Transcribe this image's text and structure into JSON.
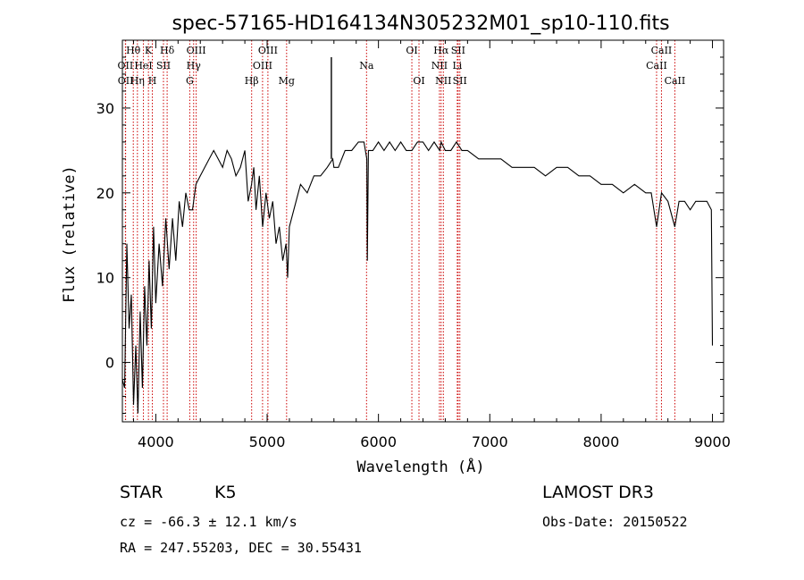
{
  "chart_data": {
    "type": "line",
    "title": "spec-57165-HD164134N305232M01_sp10-110.fits",
    "xlabel": "Wavelength (Å)",
    "ylabel": "Flux (relative)",
    "xlim": [
      3700,
      9100
    ],
    "ylim": [
      -7,
      38
    ],
    "xticks": [
      4000,
      5000,
      6000,
      7000,
      8000,
      9000
    ],
    "yticks": [
      0,
      10,
      20,
      30
    ],
    "series": [
      {
        "name": "spectrum",
        "x": [
          3700,
          3720,
          3740,
          3760,
          3780,
          3800,
          3820,
          3840,
          3860,
          3880,
          3900,
          3920,
          3940,
          3960,
          3980,
          4000,
          4030,
          4060,
          4090,
          4120,
          4150,
          4180,
          4210,
          4240,
          4270,
          4300,
          4330,
          4360,
          4400,
          4440,
          4480,
          4520,
          4560,
          4600,
          4640,
          4680,
          4720,
          4760,
          4800,
          4830,
          4860,
          4880,
          4900,
          4930,
          4960,
          4990,
          5020,
          5050,
          5080,
          5110,
          5140,
          5170,
          5184,
          5200,
          5240,
          5300,
          5360,
          5420,
          5480,
          5540,
          5590,
          5600,
          5640,
          5700,
          5760,
          5820,
          5870,
          5895,
          5900,
          5910,
          5950,
          6000,
          6050,
          6100,
          6150,
          6200,
          6250,
          6300,
          6350,
          6400,
          6450,
          6500,
          6550,
          6563,
          6600,
          6650,
          6700,
          6750,
          6800,
          6900,
          7000,
          7100,
          7200,
          7300,
          7400,
          7500,
          7600,
          7700,
          7800,
          7900,
          8000,
          8100,
          8200,
          8300,
          8400,
          8450,
          8498,
          8542,
          8600,
          8662,
          8700,
          8750,
          8800,
          8850,
          8900,
          8950,
          8990,
          9000
        ],
        "y": [
          -2,
          -3,
          14,
          4,
          8,
          -5,
          2,
          -6,
          6,
          -3,
          9,
          2,
          12,
          4,
          16,
          7,
          14,
          9,
          17,
          11,
          17,
          12,
          19,
          16,
          20,
          18,
          18,
          21,
          22,
          23,
          24,
          25,
          24,
          23,
          25,
          24,
          22,
          23,
          25,
          19,
          21,
          23,
          18,
          22,
          16,
          20,
          17,
          19,
          14,
          16,
          12,
          14,
          10,
          16,
          18,
          21,
          20,
          22,
          22,
          23,
          24,
          23,
          23,
          25,
          25,
          26,
          26,
          24,
          12,
          25,
          25,
          26,
          25,
          26,
          25,
          26,
          25,
          25,
          26,
          26,
          25,
          26,
          25,
          26,
          25,
          25,
          26,
          25,
          25,
          24,
          24,
          24,
          23,
          23,
          23,
          22,
          23,
          23,
          22,
          22,
          21,
          21,
          20,
          21,
          20,
          20,
          16,
          20,
          19,
          16,
          19,
          19,
          18,
          19,
          19,
          19,
          18,
          2
        ]
      }
    ],
    "spike": {
      "x": 5577,
      "y_top": 36
    },
    "spectral_lines": [
      {
        "name": "Hθ",
        "wl": 3798,
        "row": 0
      },
      {
        "name": "OII",
        "wl": 3727,
        "row": 1
      },
      {
        "name": "OII",
        "wl": 3729,
        "row": 2
      },
      {
        "name": "K",
        "wl": 3934,
        "row": 0
      },
      {
        "name": "HeI",
        "wl": 3889,
        "row": 1
      },
      {
        "name": "Hη",
        "wl": 3835,
        "row": 2
      },
      {
        "name": "H",
        "wl": 3969,
        "row": 2
      },
      {
        "name": "Hδ",
        "wl": 4102,
        "row": 0
      },
      {
        "name": "SII",
        "wl": 4069,
        "row": 1
      },
      {
        "name": "OIII",
        "wl": 4363,
        "row": 0
      },
      {
        "name": "Hγ",
        "wl": 4340,
        "row": 1
      },
      {
        "name": "G",
        "wl": 4305,
        "row": 2
      },
      {
        "name": "Hβ",
        "wl": 4861,
        "row": 2
      },
      {
        "name": "OIII",
        "wl": 5007,
        "row": 0
      },
      {
        "name": "OIII",
        "wl": 4959,
        "row": 1
      },
      {
        "name": "Mg",
        "wl": 5175,
        "row": 2
      },
      {
        "name": "Na",
        "wl": 5893,
        "row": 1
      },
      {
        "name": "OI",
        "wl": 6300,
        "row": 0
      },
      {
        "name": "OI",
        "wl": 6364,
        "row": 2
      },
      {
        "name": "Hα",
        "wl": 6563,
        "row": 0
      },
      {
        "name": "NII",
        "wl": 6548,
        "row": 1
      },
      {
        "name": "NII",
        "wl": 6583,
        "row": 2
      },
      {
        "name": "SII",
        "wl": 6716,
        "row": 0
      },
      {
        "name": "Li",
        "wl": 6708,
        "row": 1
      },
      {
        "name": "SII",
        "wl": 6731,
        "row": 2
      },
      {
        "name": "CaII",
        "wl": 8542,
        "row": 0
      },
      {
        "name": "CaII",
        "wl": 8498,
        "row": 1
      },
      {
        "name": "CaII",
        "wl": 8662,
        "row": 2
      }
    ]
  },
  "info": {
    "object_class": "STAR",
    "subclass": "K5",
    "survey": "LAMOST DR3",
    "redshift": "cz = -66.3 ± 12.1 km/s",
    "obs_date": "Obs-Date: 20150522",
    "coords": "RA = 247.55203, DEC =  30.55431"
  },
  "colors": {
    "spectrum": "#000000",
    "lines": "#cc0000",
    "axis": "#000000"
  }
}
